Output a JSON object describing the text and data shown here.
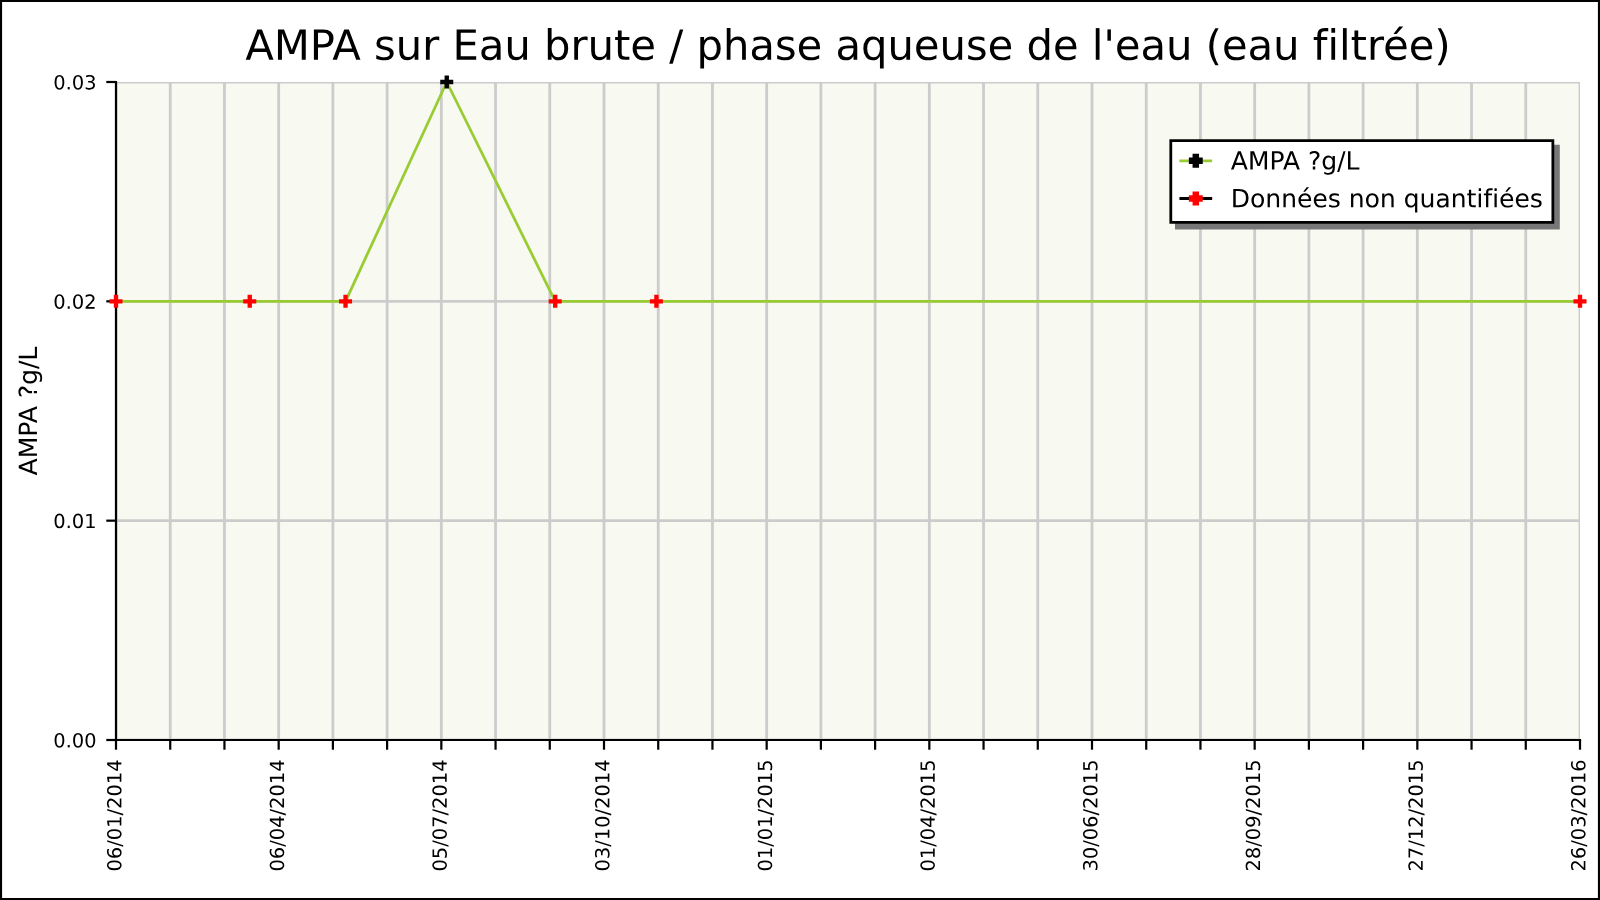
{
  "chart_data": {
    "type": "line",
    "title": "AMPA sur Eau brute / phase aqueuse de l'eau (eau filtrée)",
    "ylabel": "AMPA ?g/L",
    "x": [
      "2014-01-06",
      "2014-03-21",
      "2014-05-13",
      "2014-07-08",
      "2014-09-06",
      "2014-11-01",
      "2016-03-26"
    ],
    "series": [
      {
        "name": "AMPA ?g/L",
        "color": "#99cc33",
        "values": [
          0.02,
          0.02,
          0.02,
          0.03,
          0.02,
          0.02,
          0.02
        ]
      },
      {
        "type": "scatter",
        "color": "#000000",
        "marker": "cross",
        "values": [
          null,
          null,
          null,
          0.03,
          null,
          null,
          null
        ]
      },
      {
        "name": "Données non quantifiées",
        "type": "scatter",
        "color": "#ff0000",
        "marker": "cross",
        "values": [
          0.02,
          0.02,
          0.02,
          null,
          0.02,
          0.02,
          0.02
        ]
      }
    ],
    "xlim": [
      "2014-01-06",
      "2016-03-26"
    ],
    "xticks": [
      {
        "value": "2014-01-06",
        "label": "06/01/2014"
      },
      {
        "value": "2014-02-05",
        "label": null
      },
      {
        "value": "2014-03-07",
        "label": null
      },
      {
        "value": "2014-04-06",
        "label": "06/04/2014"
      },
      {
        "value": "2014-05-06",
        "label": null
      },
      {
        "value": "2014-06-05",
        "label": null
      },
      {
        "value": "2014-07-05",
        "label": "05/07/2014"
      },
      {
        "value": "2014-08-04",
        "label": null
      },
      {
        "value": "2014-09-03",
        "label": null
      },
      {
        "value": "2014-10-03",
        "label": "03/10/2014"
      },
      {
        "value": "2014-11-02",
        "label": null
      },
      {
        "value": "2014-12-02",
        "label": null
      },
      {
        "value": "2015-01-01",
        "label": "01/01/2015"
      },
      {
        "value": "2015-01-31",
        "label": null
      },
      {
        "value": "2015-03-02",
        "label": null
      },
      {
        "value": "2015-04-01",
        "label": "01/04/2015"
      },
      {
        "value": "2015-05-01",
        "label": null
      },
      {
        "value": "2015-05-31",
        "label": null
      },
      {
        "value": "2015-06-30",
        "label": "30/06/2015"
      },
      {
        "value": "2015-07-30",
        "label": null
      },
      {
        "value": "2015-08-29",
        "label": null
      },
      {
        "value": "2015-09-28",
        "label": "28/09/2015"
      },
      {
        "value": "2015-10-28",
        "label": null
      },
      {
        "value": "2015-11-27",
        "label": null
      },
      {
        "value": "2015-12-27",
        "label": "27/12/2015"
      },
      {
        "value": "2016-01-26",
        "label": null
      },
      {
        "value": "2016-02-25",
        "label": null
      },
      {
        "value": "2016-03-26",
        "label": "26/03/2016"
      }
    ],
    "ylim": [
      0,
      0.03
    ],
    "yticks": [
      {
        "value": 0,
        "label": "0.00"
      },
      {
        "value": 0.01,
        "label": "0.01"
      },
      {
        "value": 0.02,
        "label": "0.02"
      },
      {
        "value": 0.03,
        "label": "0.03"
      }
    ],
    "grid": true,
    "legend": "top right"
  }
}
